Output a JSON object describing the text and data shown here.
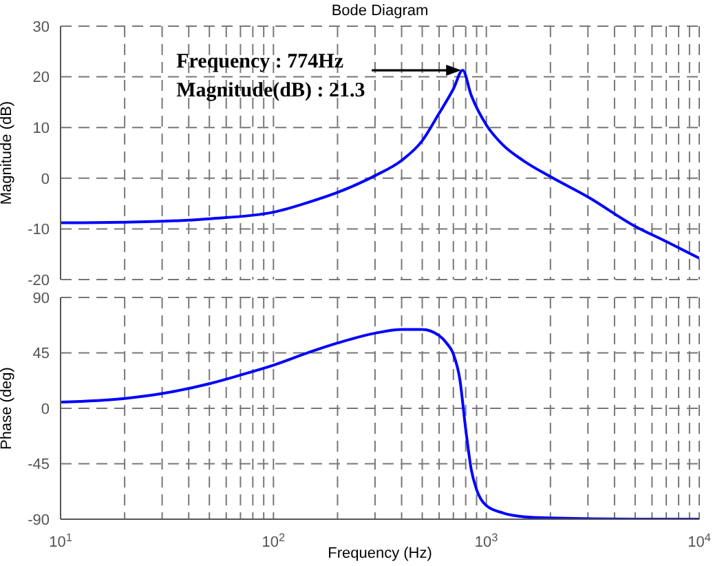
{
  "chart_data": [
    {
      "type": "line",
      "title": "Bode Diagram",
      "ylabel": "Magnitude (dB)",
      "color": "#0000ff",
      "grid": true,
      "tick_labels": "y",
      "log": "x",
      "x": [
        10,
        20,
        50,
        100,
        150,
        200,
        250,
        300,
        400,
        500,
        600,
        700,
        774,
        850,
        1000,
        1200,
        1500,
        2000,
        3000,
        5000,
        7000,
        10000
      ],
      "values": [
        -8.8,
        -8.7,
        -8.0,
        -6.7,
        -4.6,
        -2.8,
        -1.1,
        0.5,
        3.5,
        7.4,
        12.8,
        17.6,
        21.3,
        16.3,
        10.5,
        6.5,
        3.4,
        0.3,
        -3.7,
        -9.5,
        -12.5,
        -15.8
      ],
      "xlim": [
        10,
        10000
      ],
      "xticks": [
        {
          "value": 10,
          "label": null
        },
        {
          "value": 20,
          "label": null
        },
        {
          "value": 30,
          "label": null
        },
        {
          "value": 40,
          "label": null
        },
        {
          "value": 50,
          "label": null
        },
        {
          "value": 60,
          "label": null
        },
        {
          "value": 70,
          "label": null
        },
        {
          "value": 80,
          "label": null
        },
        {
          "value": 90,
          "label": null
        },
        {
          "value": 100,
          "label": null
        },
        {
          "value": 200,
          "label": null
        },
        {
          "value": 300,
          "label": null
        },
        {
          "value": 400,
          "label": null
        },
        {
          "value": 500,
          "label": null
        },
        {
          "value": 600,
          "label": null
        },
        {
          "value": 700,
          "label": null
        },
        {
          "value": 800,
          "label": null
        },
        {
          "value": 900,
          "label": null
        },
        {
          "value": 1000,
          "label": null
        },
        {
          "value": 2000,
          "label": null
        },
        {
          "value": 3000,
          "label": null
        },
        {
          "value": 4000,
          "label": null
        },
        {
          "value": 5000,
          "label": null
        },
        {
          "value": 6000,
          "label": null
        },
        {
          "value": 7000,
          "label": null
        },
        {
          "value": 8000,
          "label": null
        },
        {
          "value": 9000,
          "label": null
        },
        {
          "value": 10000,
          "label": null
        }
      ],
      "ylim": [
        -20,
        30
      ],
      "yticks": [
        -20,
        -10,
        0,
        10,
        20,
        30
      ],
      "annotations": [
        "Frequency : 774Hz\nMagnitude(dB) : 21.3"
      ]
    },
    {
      "type": "line",
      "xlabel": "Frequency  (Hz)",
      "ylabel": "Phase (deg)",
      "color": "#0000ff",
      "grid": true,
      "log": "x",
      "x": [
        10,
        20,
        30,
        50,
        70,
        100,
        150,
        200,
        300,
        400,
        500,
        600,
        650,
        700,
        750,
        800,
        850,
        900,
        1000,
        1200,
        1500,
        2000,
        5000,
        10000
      ],
      "values": [
        5,
        8,
        12,
        20,
        27,
        35,
        46,
        53,
        61,
        64,
        64,
        59,
        53,
        44,
        24,
        -17,
        -50,
        -66,
        -79,
        -85,
        -88,
        -89,
        -90,
        -90
      ],
      "xlim": [
        10,
        10000
      ],
      "xticks": [
        {
          "value": 10,
          "label": "10$^{1}$"
        },
        {
          "value": 20,
          "label": null
        },
        {
          "value": 30,
          "label": null
        },
        {
          "value": 40,
          "label": null
        },
        {
          "value": 50,
          "label": null
        },
        {
          "value": 60,
          "label": null
        },
        {
          "value": 70,
          "label": null
        },
        {
          "value": 80,
          "label": null
        },
        {
          "value": 90,
          "label": null
        },
        {
          "value": 100,
          "label": "10$^{2}$"
        },
        {
          "value": 200,
          "label": null
        },
        {
          "value": 300,
          "label": null
        },
        {
          "value": 400,
          "label": null
        },
        {
          "value": 500,
          "label": null
        },
        {
          "value": 600,
          "label": null
        },
        {
          "value": 700,
          "label": null
        },
        {
          "value": 800,
          "label": null
        },
        {
          "value": 900,
          "label": null
        },
        {
          "value": 1000,
          "label": "10$^{3}$"
        },
        {
          "value": 2000,
          "label": null
        },
        {
          "value": 3000,
          "label": null
        },
        {
          "value": 4000,
          "label": null
        },
        {
          "value": 5000,
          "label": null
        },
        {
          "value": 6000,
          "label": null
        },
        {
          "value": 7000,
          "label": null
        },
        {
          "value": 8000,
          "label": null
        },
        {
          "value": 9000,
          "label": null
        },
        {
          "value": 10000,
          "label": "10$^{4}$"
        }
      ],
      "ylim": [
        -90,
        90
      ],
      "yticks": [
        -90,
        -45,
        0,
        45,
        90
      ]
    }
  ]
}
